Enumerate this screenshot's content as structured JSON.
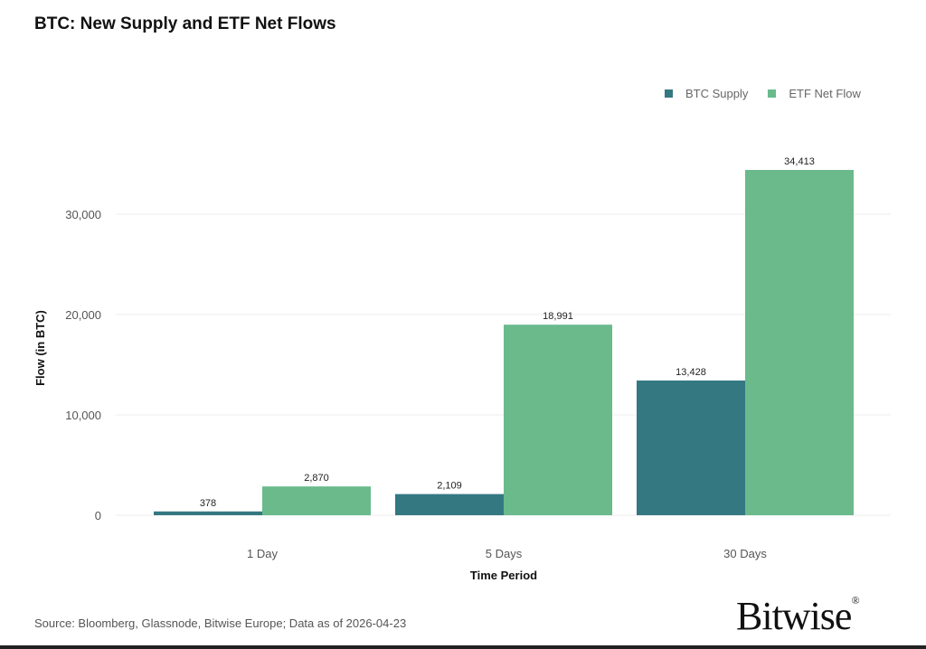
{
  "chart_data": {
    "type": "bar",
    "title": "BTC: New Supply and ETF Net Flows",
    "xlabel": "Time Period",
    "ylabel": "Flow (in BTC)",
    "categories": [
      "1 Day",
      "5 Days",
      "30 Days"
    ],
    "series": [
      {
        "name": "BTC Supply",
        "values": [
          378,
          2109,
          13428
        ],
        "labels": [
          "378",
          "2,109",
          "13,428"
        ],
        "color": "#347882"
      },
      {
        "name": "ETF Net Flow",
        "values": [
          2870,
          18991,
          34413
        ],
        "labels": [
          "2,870",
          "18,991",
          "34,413"
        ],
        "color": "#6aba8c"
      }
    ],
    "yticks": [
      0,
      10000,
      20000,
      30000
    ],
    "ytick_labels": [
      "0",
      "10,000",
      "20,000",
      "30,000"
    ],
    "ylim": [
      0,
      34413
    ],
    "grid": true,
    "legend_position": "top-right"
  },
  "source": "Source: Bloomberg, Glassnode, Bitwise Europe; Data as of 2026-04-23",
  "logo": "Bitwise"
}
